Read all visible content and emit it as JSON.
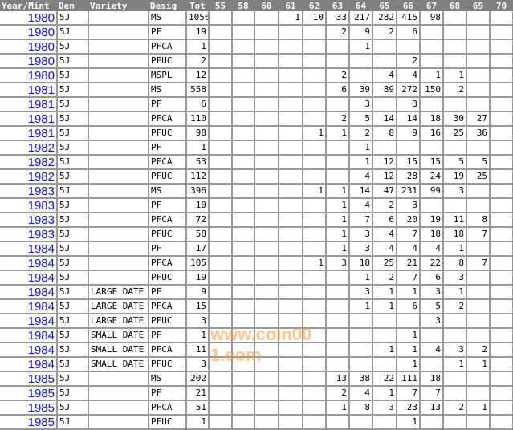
{
  "headers": [
    "Year/Mint",
    "Den",
    "Variety",
    "Desig",
    "Tot",
    "55",
    "58",
    "60",
    "61",
    "62",
    "63",
    "64",
    "65",
    "66",
    "67",
    "68",
    "69",
    "70"
  ],
  "rows": [
    [
      "1980",
      "5J",
      "",
      "MS",
      "1056",
      "",
      "",
      "",
      "1",
      "10",
      "33",
      "217",
      "282",
      "415",
      "98",
      "",
      "",
      ""
    ],
    [
      "1980",
      "5J",
      "",
      "PF",
      "19",
      "",
      "",
      "",
      "",
      "",
      "2",
      "9",
      "2",
      "6",
      "",
      "",
      "",
      ""
    ],
    [
      "1980",
      "5J",
      "",
      "PFCA",
      "1",
      "",
      "",
      "",
      "",
      "",
      "",
      "1",
      "",
      "",
      "",
      "",
      "",
      ""
    ],
    [
      "1980",
      "5J",
      "",
      "PFUC",
      "2",
      "",
      "",
      "",
      "",
      "",
      "",
      "",
      "",
      "2",
      "",
      "",
      "",
      ""
    ],
    [
      "1980",
      "5J",
      "",
      "MSPL",
      "12",
      "",
      "",
      "",
      "",
      "",
      "2",
      "",
      "4",
      "4",
      "1",
      "1",
      "",
      ""
    ],
    [
      "1981",
      "5J",
      "",
      "MS",
      "558",
      "",
      "",
      "",
      "",
      "",
      "6",
      "39",
      "89",
      "272",
      "150",
      "2",
      "",
      ""
    ],
    [
      "1981",
      "5J",
      "",
      "PF",
      "6",
      "",
      "",
      "",
      "",
      "",
      "",
      "3",
      "",
      "3",
      "",
      "",
      "",
      ""
    ],
    [
      "1981",
      "5J",
      "",
      "PFCA",
      "110",
      "",
      "",
      "",
      "",
      "",
      "2",
      "5",
      "14",
      "14",
      "18",
      "30",
      "27",
      ""
    ],
    [
      "1981",
      "5J",
      "",
      "PFUC",
      "98",
      "",
      "",
      "",
      "",
      "1",
      "1",
      "2",
      "8",
      "9",
      "16",
      "25",
      "36",
      ""
    ],
    [
      "1982",
      "5J",
      "",
      "PF",
      "1",
      "",
      "",
      "",
      "",
      "",
      "",
      "1",
      "",
      "",
      "",
      "",
      "",
      ""
    ],
    [
      "1982",
      "5J",
      "",
      "PFCA",
      "53",
      "",
      "",
      "",
      "",
      "",
      "",
      "1",
      "12",
      "15",
      "15",
      "5",
      "5",
      ""
    ],
    [
      "1982",
      "5J",
      "",
      "PFUC",
      "112",
      "",
      "",
      "",
      "",
      "",
      "",
      "4",
      "12",
      "28",
      "24",
      "19",
      "25",
      ""
    ],
    [
      "1983",
      "5J",
      "",
      "MS",
      "396",
      "",
      "",
      "",
      "",
      "1",
      "1",
      "14",
      "47",
      "231",
      "99",
      "3",
      "",
      ""
    ],
    [
      "1983",
      "5J",
      "",
      "PF",
      "10",
      "",
      "",
      "",
      "",
      "",
      "1",
      "4",
      "2",
      "3",
      "",
      "",
      "",
      ""
    ],
    [
      "1983",
      "5J",
      "",
      "PFCA",
      "72",
      "",
      "",
      "",
      "",
      "",
      "1",
      "7",
      "6",
      "20",
      "19",
      "11",
      "8",
      ""
    ],
    [
      "1983",
      "5J",
      "",
      "PFUC",
      "58",
      "",
      "",
      "",
      "",
      "",
      "1",
      "3",
      "4",
      "7",
      "18",
      "18",
      "7",
      ""
    ],
    [
      "1984",
      "5J",
      "",
      "PF",
      "17",
      "",
      "",
      "",
      "",
      "",
      "1",
      "3",
      "4",
      "4",
      "4",
      "1",
      "",
      ""
    ],
    [
      "1984",
      "5J",
      "",
      "PFCA",
      "105",
      "",
      "",
      "",
      "",
      "1",
      "3",
      "18",
      "25",
      "21",
      "22",
      "8",
      "7",
      ""
    ],
    [
      "1984",
      "5J",
      "",
      "PFUC",
      "19",
      "",
      "",
      "",
      "",
      "",
      "",
      "1",
      "2",
      "7",
      "6",
      "3",
      "",
      ""
    ],
    [
      "1984",
      "5J",
      "LARGE DATE",
      "PF",
      "9",
      "",
      "",
      "",
      "",
      "",
      "",
      "3",
      "1",
      "1",
      "3",
      "1",
      "",
      ""
    ],
    [
      "1984",
      "5J",
      "LARGE DATE",
      "PFCA",
      "15",
      "",
      "",
      "",
      "",
      "",
      "",
      "1",
      "1",
      "6",
      "5",
      "2",
      "",
      ""
    ],
    [
      "1984",
      "5J",
      "LARGE DATE",
      "PFUC",
      "3",
      "",
      "",
      "",
      "",
      "",
      "",
      "",
      "",
      "",
      "3",
      "",
      "",
      ""
    ],
    [
      "1984",
      "5J",
      "SMALL DATE",
      "PF",
      "1",
      "",
      "",
      "",
      "",
      "",
      "",
      "",
      "",
      "1",
      "",
      "",
      "",
      ""
    ],
    [
      "1984",
      "5J",
      "SMALL DATE",
      "PFCA",
      "11",
      "",
      "",
      "",
      "",
      "",
      "",
      "",
      "1",
      "1",
      "4",
      "3",
      "2",
      ""
    ],
    [
      "1984",
      "5J",
      "SMALL DATE",
      "PFUC",
      "3",
      "",
      "",
      "",
      "",
      "",
      "",
      "",
      "",
      "1",
      "",
      "1",
      "1",
      ""
    ],
    [
      "1985",
      "5J",
      "",
      "MS",
      "202",
      "",
      "",
      "",
      "",
      "",
      "13",
      "38",
      "22",
      "111",
      "18",
      "",
      "",
      ""
    ],
    [
      "1985",
      "5J",
      "",
      "PF",
      "21",
      "",
      "",
      "",
      "",
      "",
      "2",
      "4",
      "1",
      "7",
      "7",
      "",
      "",
      ""
    ],
    [
      "1985",
      "5J",
      "",
      "PFCA",
      "51",
      "",
      "",
      "",
      "",
      "",
      "1",
      "8",
      "3",
      "23",
      "13",
      "2",
      "1",
      ""
    ],
    [
      "1985",
      "5J",
      "",
      "PFUC",
      "1",
      "",
      "",
      "",
      "",
      "",
      "",
      "",
      "",
      "1",
      "",
      "",
      "",
      ""
    ]
  ],
  "watermark": "www.coin001.com",
  "colors": {
    "header_bg": "#808080",
    "year_link": "#1010e0",
    "grid": "#999999",
    "watermark": "#ff9632"
  }
}
